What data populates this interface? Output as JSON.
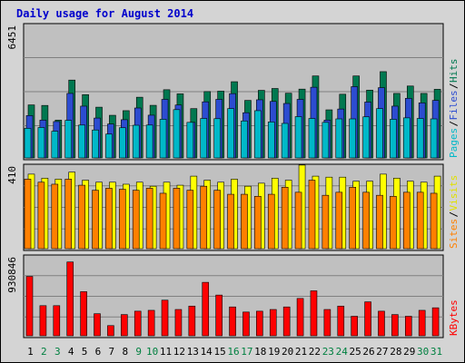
{
  "chart_data": {
    "type": "bar",
    "title": "Daily usage for August 2014",
    "x": [
      "1",
      "2",
      "3",
      "4",
      "5",
      "6",
      "7",
      "8",
      "9",
      "10",
      "11",
      "12",
      "13",
      "14",
      "15",
      "16",
      "17",
      "18",
      "19",
      "20",
      "21",
      "22",
      "23",
      "24",
      "25",
      "26",
      "27",
      "28",
      "29",
      "30",
      "31"
    ],
    "weekend_days": [
      "2",
      "3",
      "9",
      "10",
      "16",
      "17",
      "23",
      "24",
      "30",
      "31"
    ],
    "panels": [
      {
        "id": "traffic",
        "max_label": "6451",
        "legend": [
          "Pages",
          "Files",
          "Hits"
        ],
        "legend_colors": [
          "#00b8c8",
          "#2c4cd0",
          "#007850"
        ],
        "ymax": 6451,
        "series": [
          {
            "name": "Hits",
            "color": "#007850",
            "values": [
              2580,
              2555,
              1840,
              3790,
              3080,
              2470,
              2075,
              2300,
              2955,
              2560,
              3320,
              3120,
              2400,
              3230,
              3250,
              3710,
              2800,
              3290,
              3380,
              3150,
              3350,
              3990,
              2340,
              3100,
              3990,
              3300,
              4200,
              3140,
              3500,
              3140,
              3340
            ]
          },
          {
            "name": "Files",
            "color": "#2c4cd0",
            "values": [
              2060,
              1840,
              1770,
              3140,
              2520,
              1940,
              1650,
              1860,
              2430,
              2080,
              2850,
              2575,
              1730,
              2730,
              2850,
              3130,
              2200,
              2830,
              2750,
              2650,
              2850,
              3440,
              1840,
              2380,
              3470,
              2720,
              3420,
              2520,
              2900,
              2680,
              2800
            ]
          },
          {
            "name": "Pages",
            "color": "#00b8c8",
            "values": [
              1440,
              1480,
              1300,
              1830,
              1600,
              1360,
              1160,
              1470,
              1590,
              1600,
              1880,
              2350,
              1730,
              1920,
              1910,
              2400,
              1800,
              2300,
              1750,
              1680,
              2010,
              1920,
              1730,
              1900,
              1900,
              2000,
              2400,
              1880,
              1950,
              1920,
              1900
            ]
          }
        ]
      },
      {
        "id": "visitors",
        "max_label": "410",
        "legend": [
          "Sites",
          "Visits"
        ],
        "legend_colors": [
          "#ff8000",
          "#e0e000"
        ],
        "ymax": 410,
        "series": [
          {
            "name": "Visits",
            "color": "#ffff00",
            "values": [
              370,
              350,
              345,
              380,
              340,
              330,
              330,
              320,
              330,
              310,
              330,
              315,
              360,
              340,
              330,
              345,
              310,
              325,
              350,
              340,
              415,
              360,
              355,
              355,
              335,
              335,
              370,
              350,
              335,
              330,
              360
            ]
          },
          {
            "name": "Sites",
            "color": "#ff8000",
            "values": [
              345,
              330,
              320,
              345,
              315,
              290,
              300,
              295,
              290,
              300,
              275,
              300,
              290,
              310,
              290,
              270,
              270,
              260,
              270,
              305,
              280,
              340,
              265,
              280,
              305,
              280,
              265,
              260,
              280,
              280,
              275
            ]
          }
        ]
      },
      {
        "id": "kbytes",
        "max_label": "930846",
        "legend": [
          "KBytes"
        ],
        "legend_colors": [
          "#ff0000"
        ],
        "ymax": 930846,
        "series": [
          {
            "name": "KBytes",
            "color": "#ff0000",
            "values": [
              700000,
              355000,
              355000,
              870000,
              520000,
              260000,
              120000,
              250000,
              290000,
              300000,
              420000,
              310000,
              350000,
              630000,
              480000,
              340000,
              280000,
              290000,
              310000,
              340000,
              440000,
              530000,
              310000,
              350000,
              230000,
              400000,
              290000,
              250000,
              230000,
              300000,
              330000
            ]
          }
        ]
      }
    ]
  }
}
